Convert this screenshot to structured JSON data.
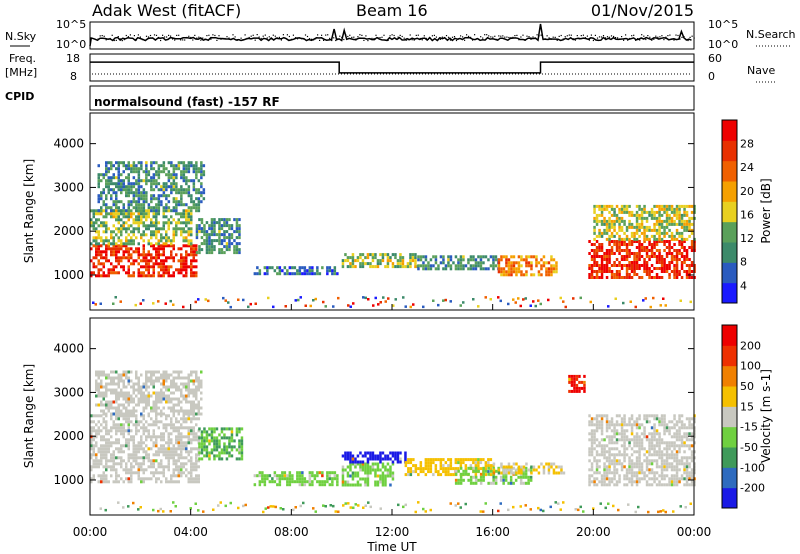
{
  "header": {
    "station": "Adak West (fitACF)",
    "beam": "Beam 16",
    "date": "01/Nov/2015"
  },
  "strips": {
    "nsky": {
      "label": "N.Sky",
      "ticks": [
        "10^5",
        "10^0"
      ]
    },
    "nsearch": {
      "label": "N.Search",
      "ticks": [
        "10^5",
        "10^0"
      ]
    },
    "freq": {
      "label_line1": "Freq.",
      "label_line2": "[MHz]",
      "ticks": [
        "18",
        "8"
      ]
    },
    "nave": {
      "label": "Nave",
      "ticks": [
        "60",
        "0"
      ]
    },
    "cpid": {
      "label": "CPID",
      "program": "normalsound (fast) -157 RF"
    }
  },
  "chart_data": [
    {
      "type": "heatmap",
      "name": "power",
      "ylabel": "Slant Range [km]",
      "ytick_labels": [
        "1000",
        "2000",
        "3000",
        "4000"
      ],
      "ytick_values": [
        1000,
        2000,
        3000,
        4000
      ],
      "ylim": [
        200,
        4700
      ],
      "xlim": [
        0,
        24
      ],
      "colorbar": {
        "title": "Power [dB]",
        "tick_labels": [
          "4",
          "8",
          "12",
          "16",
          "20",
          "24",
          "28"
        ],
        "colors": [
          "#1a1aff",
          "#2a5bbf",
          "#3c8a6a",
          "#5aa05a",
          "#e8d020",
          "#f5a000",
          "#f06000",
          "#e83000",
          "#ee0000"
        ],
        "min": 1,
        "max": 32
      },
      "regions": [
        {
          "t0": 0.0,
          "t1": 4.2,
          "r0": 950,
          "r1": 1700,
          "level": 28
        },
        {
          "t0": 0.0,
          "t1": 4.0,
          "r0": 1700,
          "r1": 2500,
          "level": 14
        },
        {
          "t0": 0.3,
          "t1": 4.5,
          "r0": 2500,
          "r1": 3600,
          "level": 10
        },
        {
          "t0": 4.2,
          "t1": 5.9,
          "r0": 1500,
          "r1": 2300,
          "level": 10
        },
        {
          "t0": 6.5,
          "t1": 9.8,
          "r0": 1000,
          "r1": 1200,
          "level": 8
        },
        {
          "t0": 10.0,
          "t1": 13.0,
          "r0": 1200,
          "r1": 1500,
          "level": 14
        },
        {
          "t0": 13.0,
          "t1": 16.2,
          "r0": 1150,
          "r1": 1450,
          "level": 10
        },
        {
          "t0": 16.2,
          "t1": 18.5,
          "r0": 1000,
          "r1": 1450,
          "level": 22
        },
        {
          "t0": 19.8,
          "t1": 24.0,
          "r0": 950,
          "r1": 1800,
          "level": 28
        },
        {
          "t0": 20.0,
          "t1": 24.0,
          "r0": 1800,
          "r1": 2600,
          "level": 16
        }
      ]
    },
    {
      "type": "heatmap",
      "name": "velocity",
      "ylabel": "Slant Range [km]",
      "ytick_labels": [
        "1000",
        "2000",
        "3000",
        "4000"
      ],
      "ytick_values": [
        1000,
        2000,
        3000,
        4000
      ],
      "ylim": [
        200,
        4700
      ],
      "xlim": [
        0,
        24
      ],
      "colorbar": {
        "title": "Velocity [m s-1]",
        "tick_labels": [
          "200",
          "100",
          "50",
          "15",
          "-15",
          "-50",
          "-100",
          "-200"
        ],
        "colors": [
          "#1a1ae6",
          "#2e6bbf",
          "#3f9a5a",
          "#6fd040",
          "#c8c8c0",
          "#f5c000",
          "#f08000",
          "#ee3000",
          "#ee0000"
        ],
        "min": -250,
        "max": 250
      },
      "regions": [
        {
          "t0": 0.0,
          "t1": 4.3,
          "r0": 950,
          "r1": 2500,
          "value": 0
        },
        {
          "t0": 0.2,
          "t1": 4.4,
          "r0": 2500,
          "r1": 3500,
          "value": 0
        },
        {
          "t0": 4.3,
          "t1": 6.0,
          "r0": 1500,
          "r1": 2200,
          "value": -80
        },
        {
          "t0": 6.5,
          "t1": 9.8,
          "r0": 900,
          "r1": 1200,
          "value": -40
        },
        {
          "t0": 10.0,
          "t1": 12.0,
          "r0": 900,
          "r1": 1400,
          "value": -40
        },
        {
          "t0": 10.0,
          "t1": 12.5,
          "r0": 1400,
          "r1": 1650,
          "value": -220
        },
        {
          "t0": 12.5,
          "t1": 16.0,
          "r0": 1150,
          "r1": 1500,
          "value": 40
        },
        {
          "t0": 14.5,
          "t1": 17.5,
          "r0": 950,
          "r1": 1300,
          "value": -40
        },
        {
          "t0": 16.0,
          "t1": 18.8,
          "r0": 1150,
          "r1": 1400,
          "value": 30
        },
        {
          "t0": 19.8,
          "t1": 24.0,
          "r0": 900,
          "r1": 2500,
          "value": 0
        },
        {
          "t0": 19.0,
          "t1": 19.6,
          "r0": 3000,
          "r1": 3400,
          "value": 200
        }
      ]
    }
  ],
  "xaxis": {
    "tick_labels": [
      "00:00",
      "04:00",
      "08:00",
      "12:00",
      "16:00",
      "20:00",
      "00:00"
    ],
    "tick_values": [
      0,
      4,
      8,
      12,
      16,
      20,
      24
    ],
    "title": "Time UT"
  },
  "nsky_series": {
    "note_free": true,
    "events": [
      {
        "t": 9.7,
        "level": 0.8
      },
      {
        "t": 10.1,
        "level": 0.75
      },
      {
        "t": 17.9,
        "level": 1.0
      },
      {
        "t": 23.5,
        "level": 0.7
      }
    ]
  },
  "freq_series": [
    {
      "t0": 0,
      "t1": 9.9,
      "mhz": 15
    },
    {
      "t0": 9.9,
      "t1": 17.9,
      "mhz": 11
    },
    {
      "t0": 17.9,
      "t1": 24,
      "mhz": 15
    }
  ]
}
